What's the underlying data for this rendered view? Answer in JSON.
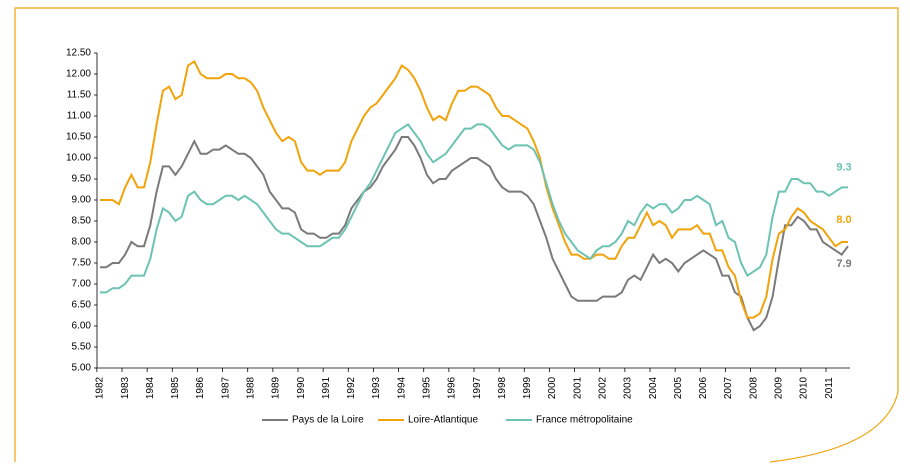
{
  "chart_data": {
    "type": "line",
    "categories": [
      "1982",
      null,
      null,
      null,
      "1983",
      null,
      null,
      null,
      "1984",
      null,
      null,
      null,
      "1985",
      null,
      null,
      null,
      "1986",
      null,
      null,
      null,
      "1987",
      null,
      null,
      null,
      "1988",
      null,
      null,
      null,
      "1989",
      null,
      null,
      null,
      "1990",
      null,
      null,
      null,
      "1991",
      null,
      null,
      null,
      "1992",
      null,
      null,
      null,
      "1993",
      null,
      null,
      null,
      "1994",
      null,
      null,
      null,
      "1995",
      null,
      null,
      null,
      "1996",
      null,
      null,
      null,
      "1997",
      null,
      null,
      null,
      "1998",
      null,
      null,
      null,
      "1999",
      null,
      null,
      null,
      "2000",
      null,
      null,
      null,
      "2001",
      null,
      null,
      null,
      "2002",
      null,
      null,
      null,
      "2003",
      null,
      null,
      null,
      "2004",
      null,
      null,
      null,
      "2005",
      null,
      null,
      null,
      "2006",
      null,
      null,
      null,
      "2007",
      null,
      null,
      null,
      "2008",
      null,
      null,
      null,
      "2009",
      null,
      null,
      null,
      "2010",
      null,
      null,
      null,
      "2011",
      null,
      null,
      null
    ],
    "series": [
      {
        "name": "Pays de la Loire",
        "color": "#7a7a7a",
        "end_label": "7.9",
        "values": [
          7.4,
          7.4,
          7.5,
          7.5,
          7.7,
          8.0,
          7.9,
          7.9,
          8.4,
          9.2,
          9.8,
          9.8,
          9.6,
          9.8,
          10.1,
          10.4,
          10.1,
          10.1,
          10.2,
          10.2,
          10.3,
          10.2,
          10.1,
          10.1,
          10.0,
          9.8,
          9.6,
          9.2,
          9.0,
          8.8,
          8.8,
          8.7,
          8.3,
          8.2,
          8.2,
          8.1,
          8.1,
          8.2,
          8.2,
          8.4,
          8.8,
          9.0,
          9.2,
          9.3,
          9.5,
          9.8,
          10.0,
          10.2,
          10.5,
          10.5,
          10.3,
          10.0,
          9.6,
          9.4,
          9.5,
          9.5,
          9.7,
          9.8,
          9.9,
          10.0,
          10.0,
          9.9,
          9.8,
          9.5,
          9.3,
          9.2,
          9.2,
          9.2,
          9.1,
          8.9,
          8.5,
          8.1,
          7.6,
          7.3,
          7.0,
          6.7,
          6.6,
          6.6,
          6.6,
          6.6,
          6.7,
          6.7,
          6.7,
          6.8,
          7.1,
          7.2,
          7.1,
          7.4,
          7.7,
          7.5,
          7.6,
          7.5,
          7.3,
          7.5,
          7.6,
          7.7,
          7.8,
          7.7,
          7.6,
          7.2,
          7.2,
          6.8,
          6.7,
          6.2,
          5.9,
          6.0,
          6.2,
          6.7,
          7.6,
          8.4,
          8.4,
          8.6,
          8.5,
          8.3,
          8.3,
          8.0,
          7.9,
          7.8,
          7.7,
          7.9
        ]
      },
      {
        "name": "Loire-Atlantique",
        "color": "#f0a30a",
        "end_label": "8.0",
        "values": [
          9.0,
          9.0,
          9.0,
          8.9,
          9.3,
          9.6,
          9.3,
          9.3,
          9.9,
          10.8,
          11.6,
          11.7,
          11.4,
          11.5,
          12.2,
          12.3,
          12.0,
          11.9,
          11.9,
          11.9,
          12.0,
          12.0,
          11.9,
          11.9,
          11.8,
          11.6,
          11.2,
          10.9,
          10.6,
          10.4,
          10.5,
          10.4,
          9.9,
          9.7,
          9.7,
          9.6,
          9.7,
          9.7,
          9.7,
          9.9,
          10.4,
          10.7,
          11.0,
          11.2,
          11.3,
          11.5,
          11.7,
          11.9,
          12.2,
          12.1,
          11.9,
          11.6,
          11.2,
          10.9,
          11.0,
          10.9,
          11.3,
          11.6,
          11.6,
          11.7,
          11.7,
          11.6,
          11.5,
          11.2,
          11.0,
          11.0,
          10.9,
          10.8,
          10.7,
          10.4,
          10.0,
          9.3,
          8.8,
          8.4,
          8.0,
          7.7,
          7.7,
          7.6,
          7.6,
          7.7,
          7.7,
          7.6,
          7.6,
          7.9,
          8.1,
          8.1,
          8.4,
          8.7,
          8.4,
          8.5,
          8.4,
          8.1,
          8.3,
          8.3,
          8.3,
          8.4,
          8.2,
          8.2,
          7.8,
          7.8,
          7.4,
          7.2,
          6.6,
          6.2,
          6.2,
          6.3,
          6.7,
          7.6,
          8.2,
          8.3,
          8.6,
          8.8,
          8.7,
          8.5,
          8.4,
          8.3,
          8.1,
          7.9,
          8.0,
          8.0
        ]
      },
      {
        "name": "France métropolitaine",
        "color": "#6cc3b3",
        "end_label": "9.3",
        "values": [
          6.8,
          6.8,
          6.9,
          6.9,
          7.0,
          7.2,
          7.2,
          7.2,
          7.6,
          8.3,
          8.8,
          8.7,
          8.5,
          8.6,
          9.1,
          9.2,
          9.0,
          8.9,
          8.9,
          9.0,
          9.1,
          9.1,
          9.0,
          9.1,
          9.0,
          8.9,
          8.7,
          8.5,
          8.3,
          8.2,
          8.2,
          8.1,
          8.0,
          7.9,
          7.9,
          7.9,
          8.0,
          8.1,
          8.1,
          8.3,
          8.6,
          8.9,
          9.2,
          9.4,
          9.7,
          10.0,
          10.3,
          10.6,
          10.7,
          10.8,
          10.6,
          10.4,
          10.1,
          9.9,
          10.0,
          10.1,
          10.3,
          10.5,
          10.7,
          10.7,
          10.8,
          10.8,
          10.7,
          10.5,
          10.3,
          10.2,
          10.3,
          10.3,
          10.3,
          10.2,
          9.9,
          9.4,
          8.9,
          8.5,
          8.2,
          8.0,
          7.8,
          7.7,
          7.6,
          7.8,
          7.9,
          7.9,
          8.0,
          8.2,
          8.5,
          8.4,
          8.7,
          8.9,
          8.8,
          8.9,
          8.9,
          8.7,
          8.8,
          9.0,
          9.0,
          9.1,
          9.0,
          8.9,
          8.4,
          8.5,
          8.1,
          8.0,
          7.5,
          7.2,
          7.3,
          7.4,
          7.7,
          8.6,
          9.2,
          9.2,
          9.5,
          9.5,
          9.4,
          9.4,
          9.2,
          9.2,
          9.1,
          9.2,
          9.3,
          9.3
        ]
      }
    ],
    "ylim": [
      5,
      12.5
    ],
    "yticks": [
      {
        "value": 5,
        "label": "5.00"
      },
      {
        "value": 5.5,
        "label": "5.50"
      },
      {
        "value": 6,
        "label": "6.00"
      },
      {
        "value": 6.5,
        "label": "6.50"
      },
      {
        "value": 7,
        "label": "7.00"
      },
      {
        "value": 7.5,
        "label": "7.50"
      },
      {
        "value": 8,
        "label": "8.00"
      },
      {
        "value": 8.5,
        "label": "8.50"
      },
      {
        "value": 9,
        "label": "9.00"
      },
      {
        "value": 9.5,
        "label": "9.50"
      },
      {
        "value": 10,
        "label": "10.00"
      },
      {
        "value": 10.5,
        "label": "10.50"
      },
      {
        "value": 11,
        "label": "11.00"
      },
      {
        "value": 11.5,
        "label": "11.50"
      },
      {
        "value": 12,
        "label": "12.00"
      },
      {
        "value": 12.5,
        "label": "12.50"
      }
    ],
    "grid": false,
    "legend": "bottom"
  }
}
